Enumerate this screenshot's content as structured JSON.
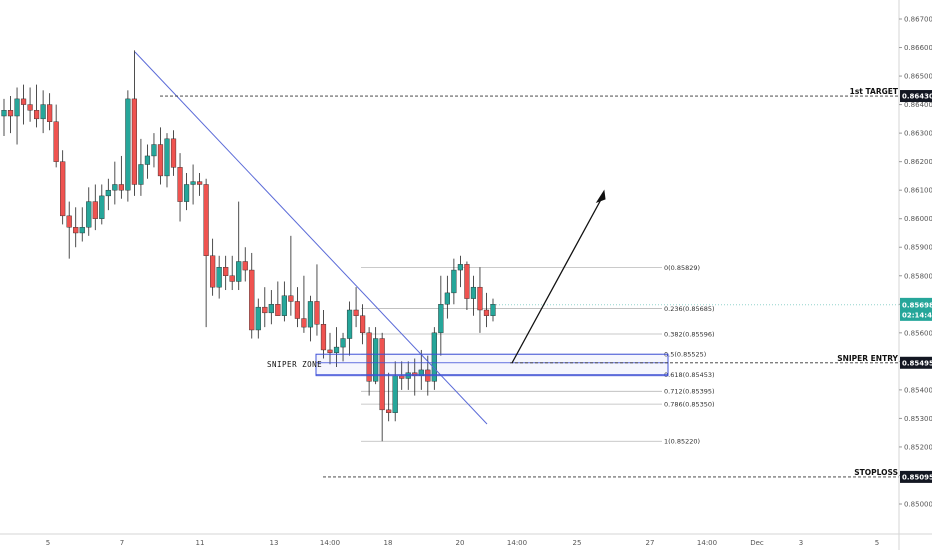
{
  "chart_data": {
    "type": "candlestick",
    "y_axis": {
      "ylim": [
        0.8496,
        0.8672
      ],
      "ticks": [
        "0.86700",
        "0.86600",
        "0.86500",
        "0.86400",
        "0.86300",
        "0.86200",
        "0.86100",
        "0.86000",
        "0.85900",
        "0.85800",
        "0.85700",
        "0.85600",
        "0.85500",
        "0.85400",
        "0.85300",
        "0.85200",
        "0.85100",
        "0.85000"
      ]
    },
    "x_axis": {
      "ticks": [
        "5",
        "7",
        "11",
        "13",
        "14:00",
        "18",
        "20",
        "14:00",
        "25",
        "27",
        "14:00",
        "Dec",
        "3",
        "5"
      ]
    },
    "candles": [
      {
        "o": 0.8636,
        "h": 0.8642,
        "l": 0.8629,
        "c": 0.8638
      },
      {
        "o": 0.8638,
        "h": 0.8643,
        "l": 0.863,
        "c": 0.8636
      },
      {
        "o": 0.8636,
        "h": 0.8646,
        "l": 0.8626,
        "c": 0.8642
      },
      {
        "o": 0.8642,
        "h": 0.8647,
        "l": 0.8633,
        "c": 0.864
      },
      {
        "o": 0.864,
        "h": 0.8646,
        "l": 0.8634,
        "c": 0.8638
      },
      {
        "o": 0.8638,
        "h": 0.8647,
        "l": 0.8632,
        "c": 0.8635
      },
      {
        "o": 0.8635,
        "h": 0.8645,
        "l": 0.863,
        "c": 0.864
      },
      {
        "o": 0.864,
        "h": 0.8644,
        "l": 0.8631,
        "c": 0.8634
      },
      {
        "o": 0.8634,
        "h": 0.864,
        "l": 0.8618,
        "c": 0.862
      },
      {
        "o": 0.862,
        "h": 0.8624,
        "l": 0.8598,
        "c": 0.8601
      },
      {
        "o": 0.8601,
        "h": 0.8606,
        "l": 0.8586,
        "c": 0.8597
      },
      {
        "o": 0.8597,
        "h": 0.8604,
        "l": 0.859,
        "c": 0.8595
      },
      {
        "o": 0.8595,
        "h": 0.8604,
        "l": 0.8592,
        "c": 0.8597
      },
      {
        "o": 0.8597,
        "h": 0.8611,
        "l": 0.8594,
        "c": 0.8606
      },
      {
        "o": 0.8606,
        "h": 0.8612,
        "l": 0.8596,
        "c": 0.86
      },
      {
        "o": 0.86,
        "h": 0.8612,
        "l": 0.8598,
        "c": 0.8608
      },
      {
        "o": 0.8608,
        "h": 0.8614,
        "l": 0.8603,
        "c": 0.861
      },
      {
        "o": 0.861,
        "h": 0.862,
        "l": 0.8605,
        "c": 0.8612
      },
      {
        "o": 0.8612,
        "h": 0.8622,
        "l": 0.8607,
        "c": 0.861
      },
      {
        "o": 0.861,
        "h": 0.8645,
        "l": 0.8606,
        "c": 0.8642
      },
      {
        "o": 0.8642,
        "h": 0.8659,
        "l": 0.8608,
        "c": 0.8612
      },
      {
        "o": 0.8612,
        "h": 0.8628,
        "l": 0.8608,
        "c": 0.8619
      },
      {
        "o": 0.8619,
        "h": 0.8626,
        "l": 0.8614,
        "c": 0.8622
      },
      {
        "o": 0.8622,
        "h": 0.863,
        "l": 0.8618,
        "c": 0.8626
      },
      {
        "o": 0.8626,
        "h": 0.8632,
        "l": 0.8612,
        "c": 0.8615
      },
      {
        "o": 0.8615,
        "h": 0.863,
        "l": 0.8611,
        "c": 0.8628
      },
      {
        "o": 0.8628,
        "h": 0.8631,
        "l": 0.8615,
        "c": 0.8618
      },
      {
        "o": 0.8618,
        "h": 0.8623,
        "l": 0.8599,
        "c": 0.8606
      },
      {
        "o": 0.8606,
        "h": 0.8616,
        "l": 0.8603,
        "c": 0.8612
      },
      {
        "o": 0.8612,
        "h": 0.8619,
        "l": 0.8605,
        "c": 0.8613
      },
      {
        "o": 0.8613,
        "h": 0.8616,
        "l": 0.8608,
        "c": 0.8612
      },
      {
        "o": 0.8612,
        "h": 0.8614,
        "l": 0.8562,
        "c": 0.8587
      },
      {
        "o": 0.8587,
        "h": 0.8593,
        "l": 0.8573,
        "c": 0.8576
      },
      {
        "o": 0.8576,
        "h": 0.8587,
        "l": 0.8572,
        "c": 0.8583
      },
      {
        "o": 0.8583,
        "h": 0.8587,
        "l": 0.8575,
        "c": 0.858
      },
      {
        "o": 0.858,
        "h": 0.8587,
        "l": 0.8575,
        "c": 0.8578
      },
      {
        "o": 0.8578,
        "h": 0.8606,
        "l": 0.8575,
        "c": 0.8585
      },
      {
        "o": 0.8585,
        "h": 0.859,
        "l": 0.8578,
        "c": 0.8582
      },
      {
        "o": 0.8582,
        "h": 0.8588,
        "l": 0.8558,
        "c": 0.8561
      },
      {
        "o": 0.8561,
        "h": 0.8572,
        "l": 0.8558,
        "c": 0.8569
      },
      {
        "o": 0.8569,
        "h": 0.8576,
        "l": 0.8562,
        "c": 0.8567
      },
      {
        "o": 0.8567,
        "h": 0.8575,
        "l": 0.8563,
        "c": 0.857
      },
      {
        "o": 0.857,
        "h": 0.8578,
        "l": 0.8566,
        "c": 0.8566
      },
      {
        "o": 0.8566,
        "h": 0.8578,
        "l": 0.8564,
        "c": 0.8573
      },
      {
        "o": 0.8573,
        "h": 0.8594,
        "l": 0.8566,
        "c": 0.8571
      },
      {
        "o": 0.8571,
        "h": 0.8576,
        "l": 0.8562,
        "c": 0.8565
      },
      {
        "o": 0.8565,
        "h": 0.858,
        "l": 0.856,
        "c": 0.8562
      },
      {
        "o": 0.8562,
        "h": 0.8573,
        "l": 0.8557,
        "c": 0.8571
      },
      {
        "o": 0.8571,
        "h": 0.8584,
        "l": 0.8559,
        "c": 0.8563
      },
      {
        "o": 0.8563,
        "h": 0.8568,
        "l": 0.8551,
        "c": 0.8554
      },
      {
        "o": 0.8554,
        "h": 0.856,
        "l": 0.8549,
        "c": 0.8553
      },
      {
        "o": 0.8553,
        "h": 0.8562,
        "l": 0.8548,
        "c": 0.8555
      },
      {
        "o": 0.8555,
        "h": 0.856,
        "l": 0.855,
        "c": 0.8558
      },
      {
        "o": 0.8558,
        "h": 0.8571,
        "l": 0.8552,
        "c": 0.8568
      },
      {
        "o": 0.8568,
        "h": 0.8576,
        "l": 0.8562,
        "c": 0.8566
      },
      {
        "o": 0.8566,
        "h": 0.857,
        "l": 0.8556,
        "c": 0.856
      },
      {
        "o": 0.856,
        "h": 0.8562,
        "l": 0.8538,
        "c": 0.8543
      },
      {
        "o": 0.8543,
        "h": 0.8562,
        "l": 0.8542,
        "c": 0.8558
      },
      {
        "o": 0.8558,
        "h": 0.856,
        "l": 0.8522,
        "c": 0.8533
      },
      {
        "o": 0.8533,
        "h": 0.8546,
        "l": 0.8529,
        "c": 0.8532
      },
      {
        "o": 0.8532,
        "h": 0.855,
        "l": 0.8529,
        "c": 0.8545
      },
      {
        "o": 0.8545,
        "h": 0.855,
        "l": 0.854,
        "c": 0.8544
      },
      {
        "o": 0.8544,
        "h": 0.855,
        "l": 0.854,
        "c": 0.8546
      },
      {
        "o": 0.8546,
        "h": 0.8551,
        "l": 0.8538,
        "c": 0.8545
      },
      {
        "o": 0.8545,
        "h": 0.8554,
        "l": 0.854,
        "c": 0.8547
      },
      {
        "o": 0.8547,
        "h": 0.8552,
        "l": 0.8538,
        "c": 0.8543
      },
      {
        "o": 0.8543,
        "h": 0.8562,
        "l": 0.854,
        "c": 0.856
      },
      {
        "o": 0.856,
        "h": 0.858,
        "l": 0.8552,
        "c": 0.857
      },
      {
        "o": 0.857,
        "h": 0.858,
        "l": 0.8565,
        "c": 0.8574
      },
      {
        "o": 0.8574,
        "h": 0.8586,
        "l": 0.857,
        "c": 0.8582
      },
      {
        "o": 0.8582,
        "h": 0.8587,
        "l": 0.8576,
        "c": 0.8584
      },
      {
        "o": 0.8584,
        "h": 0.8585,
        "l": 0.8568,
        "c": 0.8572
      },
      {
        "o": 0.8572,
        "h": 0.858,
        "l": 0.8566,
        "c": 0.8576
      },
      {
        "o": 0.8576,
        "h": 0.8583,
        "l": 0.856,
        "c": 0.8568
      },
      {
        "o": 0.8568,
        "h": 0.8574,
        "l": 0.8562,
        "c": 0.8566
      },
      {
        "o": 0.8566,
        "h": 0.8572,
        "l": 0.8564,
        "c": 0.857
      }
    ],
    "fib_levels": [
      {
        "label": "0(0.85829)",
        "price": 0.85829
      },
      {
        "label": "0.236(0.85685)",
        "price": 0.85685
      },
      {
        "label": "0.382(0.85596)",
        "price": 0.85596
      },
      {
        "label": "0.5(0.85525)",
        "price": 0.85525
      },
      {
        "label": "0.618(0.85453)",
        "price": 0.85453
      },
      {
        "label": "0.712(0.85395)",
        "price": 0.85395
      },
      {
        "label": "0.786(0.85350)",
        "price": 0.8535
      },
      {
        "label": "1(0.85220)",
        "price": 0.8522
      }
    ],
    "horizontal_levels": [
      {
        "name": "1st TARGET",
        "price": 0.8643,
        "tag": "0.86430",
        "tag_color": "#131722"
      },
      {
        "name": "SNIPER ENTRY",
        "price": 0.85495,
        "tag": "0.85495",
        "tag_color": "#131722"
      },
      {
        "name": "STOPLOSS",
        "price": 0.85095,
        "tag": "0.85095",
        "tag_color": "#131722"
      }
    ],
    "current_price": {
      "price": "0.85698",
      "countdown": "02:14:43",
      "color": "#26a69a"
    },
    "zone_label": "SNIPER ZONE",
    "colors": {
      "up": "#26a69a",
      "down": "#ef5350",
      "trendline": "#5b6bd8",
      "zone": "#3f51d8",
      "axis_text": "#555555"
    }
  }
}
